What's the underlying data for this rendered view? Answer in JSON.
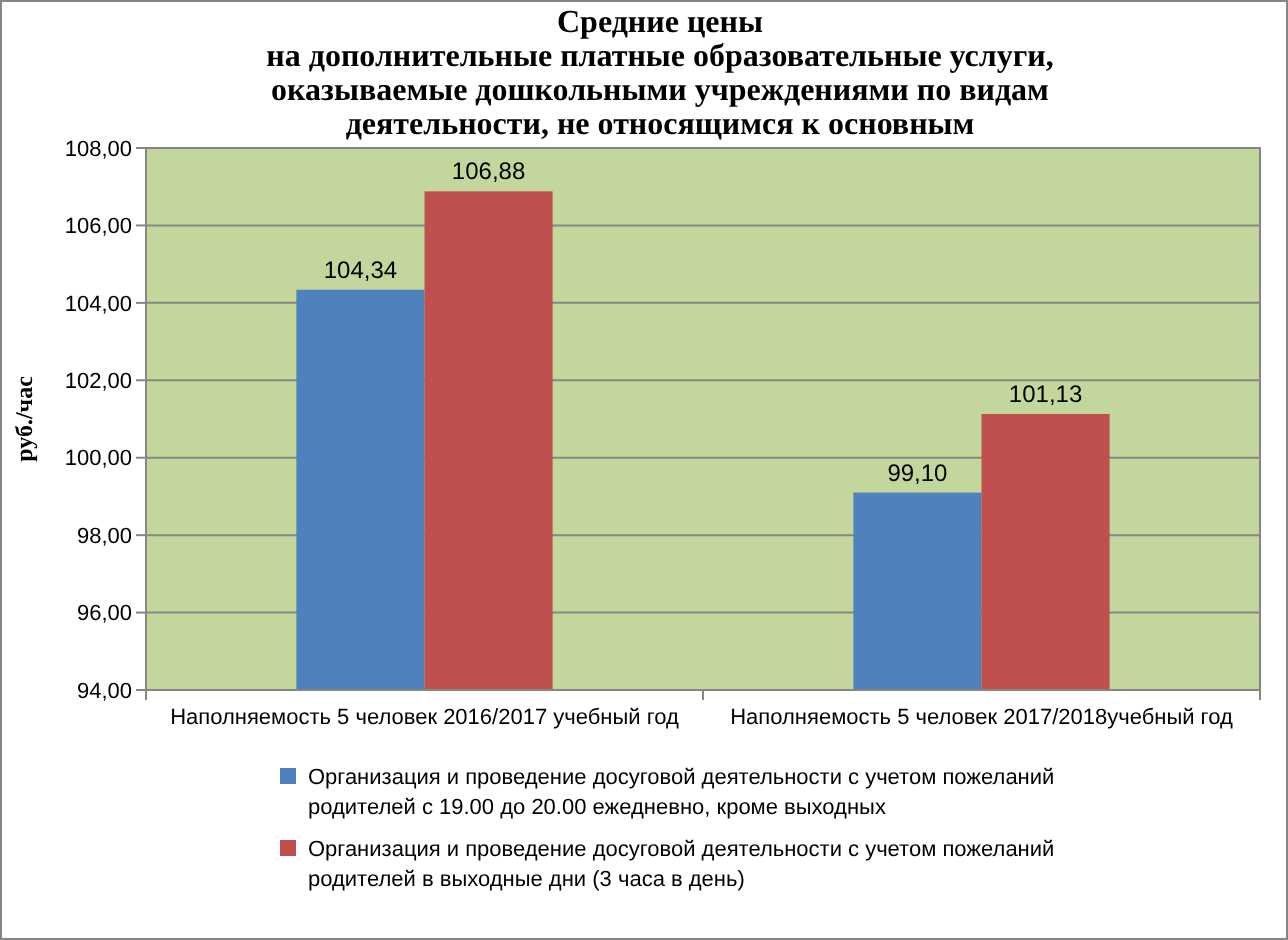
{
  "chart_data": {
    "type": "bar",
    "title": "Средние  цены\nна дополнительные платные образовательные услуги,\nоказываемые дошкольными учреждениями по видам\nдеятельности, не  относящимся к основным",
    "ylabel": "руб./час",
    "categories": [
      "Наполняемость 5 человек  2016/2017 учебный год",
      "Наполняемость 5 человек  2017/2018учебный год"
    ],
    "series": [
      {
        "name": "Организация и проведение  досуговой деятельности  с учетом пожеланий родителей  с 19.00 до 20.00 ежедневно,  кроме выходных",
        "color": "#4f81bd",
        "values": [
          104.34,
          99.1
        ],
        "value_labels": [
          "104,34",
          "99,10"
        ]
      },
      {
        "name": "Организация и проведение  досуговой деятельности  с учетом пожеланий родителей  в выходные дни (3 часа в день)",
        "color": "#c0504d",
        "values": [
          106.88,
          101.13
        ],
        "value_labels": [
          "106,88",
          "101,13"
        ]
      }
    ],
    "ylim": [
      94,
      108
    ],
    "yticks": [
      {
        "value": 94,
        "label": "94,00"
      },
      {
        "value": 96,
        "label": "96,00"
      },
      {
        "value": 98,
        "label": "98,00"
      },
      {
        "value": 100,
        "label": "100,00"
      },
      {
        "value": 102,
        "label": "102,00"
      },
      {
        "value": 104,
        "label": "104,00"
      },
      {
        "value": 106,
        "label": "106,00"
      },
      {
        "value": 108,
        "label": "108,00"
      }
    ],
    "grid": "y",
    "legend": "bottom"
  }
}
